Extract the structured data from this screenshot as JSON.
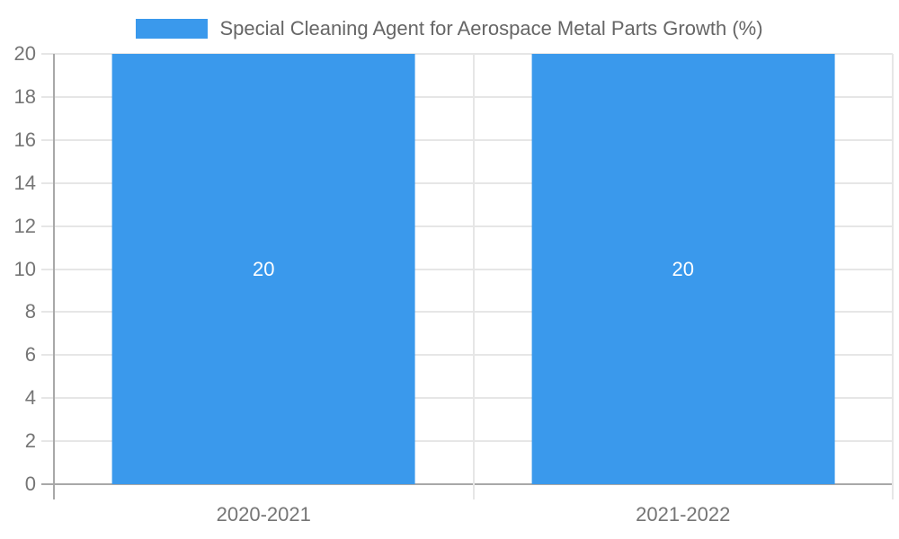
{
  "colors": {
    "bar": "#3A99EC",
    "grid": "#E6E6E6",
    "axis": "#A8A8A8",
    "tick_text": "#757575",
    "legend_text": "#666666",
    "bar_label_text": "#FFFFFF",
    "background": "#FFFFFF"
  },
  "legend": {
    "label": "Special Cleaning Agent for Aerospace Metal Parts Growth (%)"
  },
  "chart_data": {
    "type": "bar",
    "title": "",
    "categories": [
      "2020-2021",
      "2021-2022"
    ],
    "series": [
      {
        "name": "Special Cleaning Agent for Aerospace Metal Parts Growth (%)",
        "values": [
          20,
          20
        ],
        "color": "#3A99EC"
      }
    ],
    "bar_labels": [
      "20",
      "20"
    ],
    "xlabel": "",
    "ylabel": "",
    "ylim": [
      0,
      20
    ],
    "ytick_step": 2,
    "yticks": [
      0,
      2,
      4,
      6,
      8,
      10,
      12,
      14,
      16,
      18,
      20
    ],
    "grid": true,
    "legend_position": "top",
    "bar_width_fraction": 0.722
  }
}
